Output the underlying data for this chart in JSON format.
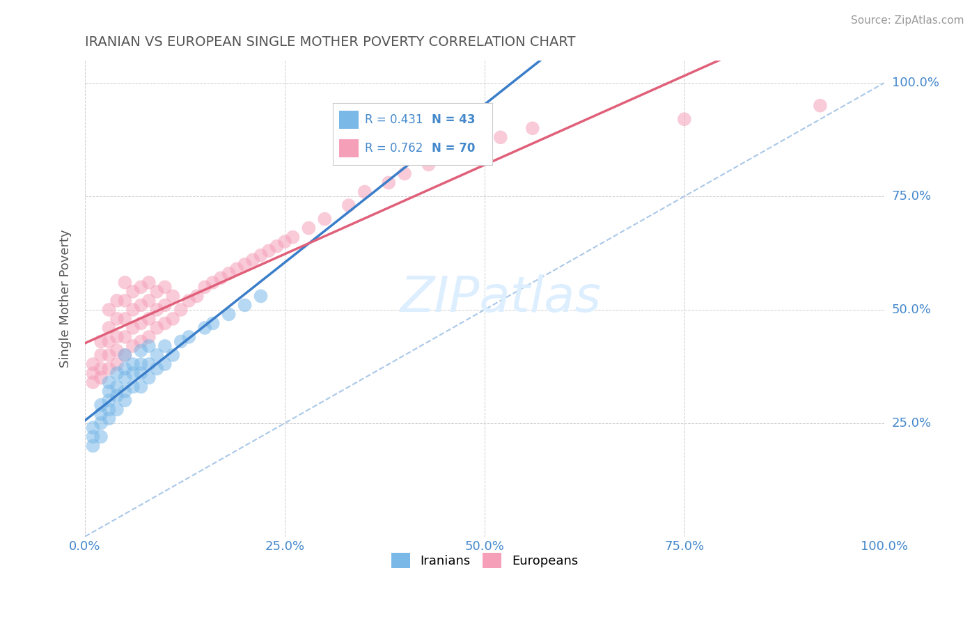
{
  "title": "IRANIAN VS EUROPEAN SINGLE MOTHER POVERTY CORRELATION CHART",
  "source": "Source: ZipAtlas.com",
  "ylabel": "Single Mother Poverty",
  "R_iranian": 0.431,
  "N_iranian": 43,
  "R_european": 0.762,
  "N_european": 70,
  "iranian_color": "#7ab8e8",
  "european_color": "#f5a0b8",
  "iranian_line_color": "#3a7dc9",
  "european_line_color": "#e0607a",
  "ref_line_color": "#aac8e8",
  "title_color": "#555555",
  "axis_label_color": "#4488cc",
  "background_color": "#ffffff",
  "grid_color": "#cccccc",
  "watermark_color": "#ddeeff",
  "iranian_x": [
    0.01,
    0.01,
    0.01,
    0.02,
    0.02,
    0.02,
    0.02,
    0.03,
    0.03,
    0.03,
    0.03,
    0.03,
    0.04,
    0.04,
    0.04,
    0.04,
    0.05,
    0.05,
    0.05,
    0.05,
    0.05,
    0.06,
    0.06,
    0.06,
    0.07,
    0.07,
    0.07,
    0.07,
    0.08,
    0.08,
    0.08,
    0.09,
    0.09,
    0.1,
    0.1,
    0.11,
    0.12,
    0.13,
    0.15,
    0.16,
    0.18,
    0.2,
    0.22
  ],
  "iranian_y": [
    0.2,
    0.22,
    0.24,
    0.22,
    0.25,
    0.27,
    0.29,
    0.26,
    0.28,
    0.3,
    0.32,
    0.34,
    0.28,
    0.31,
    0.33,
    0.36,
    0.3,
    0.32,
    0.35,
    0.37,
    0.4,
    0.33,
    0.36,
    0.38,
    0.33,
    0.36,
    0.38,
    0.41,
    0.35,
    0.38,
    0.42,
    0.37,
    0.4,
    0.38,
    0.42,
    0.4,
    0.43,
    0.44,
    0.46,
    0.47,
    0.49,
    0.51,
    0.53
  ],
  "european_x": [
    0.01,
    0.01,
    0.01,
    0.02,
    0.02,
    0.02,
    0.02,
    0.03,
    0.03,
    0.03,
    0.03,
    0.03,
    0.04,
    0.04,
    0.04,
    0.04,
    0.04,
    0.05,
    0.05,
    0.05,
    0.05,
    0.05,
    0.06,
    0.06,
    0.06,
    0.06,
    0.07,
    0.07,
    0.07,
    0.07,
    0.08,
    0.08,
    0.08,
    0.08,
    0.09,
    0.09,
    0.09,
    0.1,
    0.1,
    0.1,
    0.11,
    0.11,
    0.12,
    0.13,
    0.14,
    0.15,
    0.16,
    0.17,
    0.18,
    0.19,
    0.2,
    0.21,
    0.22,
    0.23,
    0.24,
    0.25,
    0.26,
    0.28,
    0.3,
    0.33,
    0.35,
    0.38,
    0.4,
    0.43,
    0.46,
    0.48,
    0.52,
    0.56,
    0.75,
    0.92
  ],
  "european_y": [
    0.34,
    0.36,
    0.38,
    0.35,
    0.37,
    0.4,
    0.43,
    0.37,
    0.4,
    0.43,
    0.46,
    0.5,
    0.38,
    0.41,
    0.44,
    0.48,
    0.52,
    0.4,
    0.44,
    0.48,
    0.52,
    0.56,
    0.42,
    0.46,
    0.5,
    0.54,
    0.43,
    0.47,
    0.51,
    0.55,
    0.44,
    0.48,
    0.52,
    0.56,
    0.46,
    0.5,
    0.54,
    0.47,
    0.51,
    0.55,
    0.48,
    0.53,
    0.5,
    0.52,
    0.53,
    0.55,
    0.56,
    0.57,
    0.58,
    0.59,
    0.6,
    0.61,
    0.62,
    0.63,
    0.64,
    0.65,
    0.66,
    0.68,
    0.7,
    0.73,
    0.76,
    0.78,
    0.8,
    0.82,
    0.84,
    0.85,
    0.88,
    0.9,
    0.92,
    0.95
  ],
  "xlim": [
    0.0,
    1.0
  ],
  "ylim": [
    0.0,
    1.05
  ],
  "xticks": [
    0.0,
    0.25,
    0.5,
    0.75,
    1.0
  ],
  "xticklabels": [
    "0.0%",
    "25.0%",
    "50.0%",
    "75.0%",
    "100.0%"
  ],
  "yticks": [
    0.25,
    0.5,
    0.75,
    1.0
  ],
  "yticklabels_right": [
    "25.0%",
    "50.0%",
    "75.0%",
    "100.0%"
  ]
}
